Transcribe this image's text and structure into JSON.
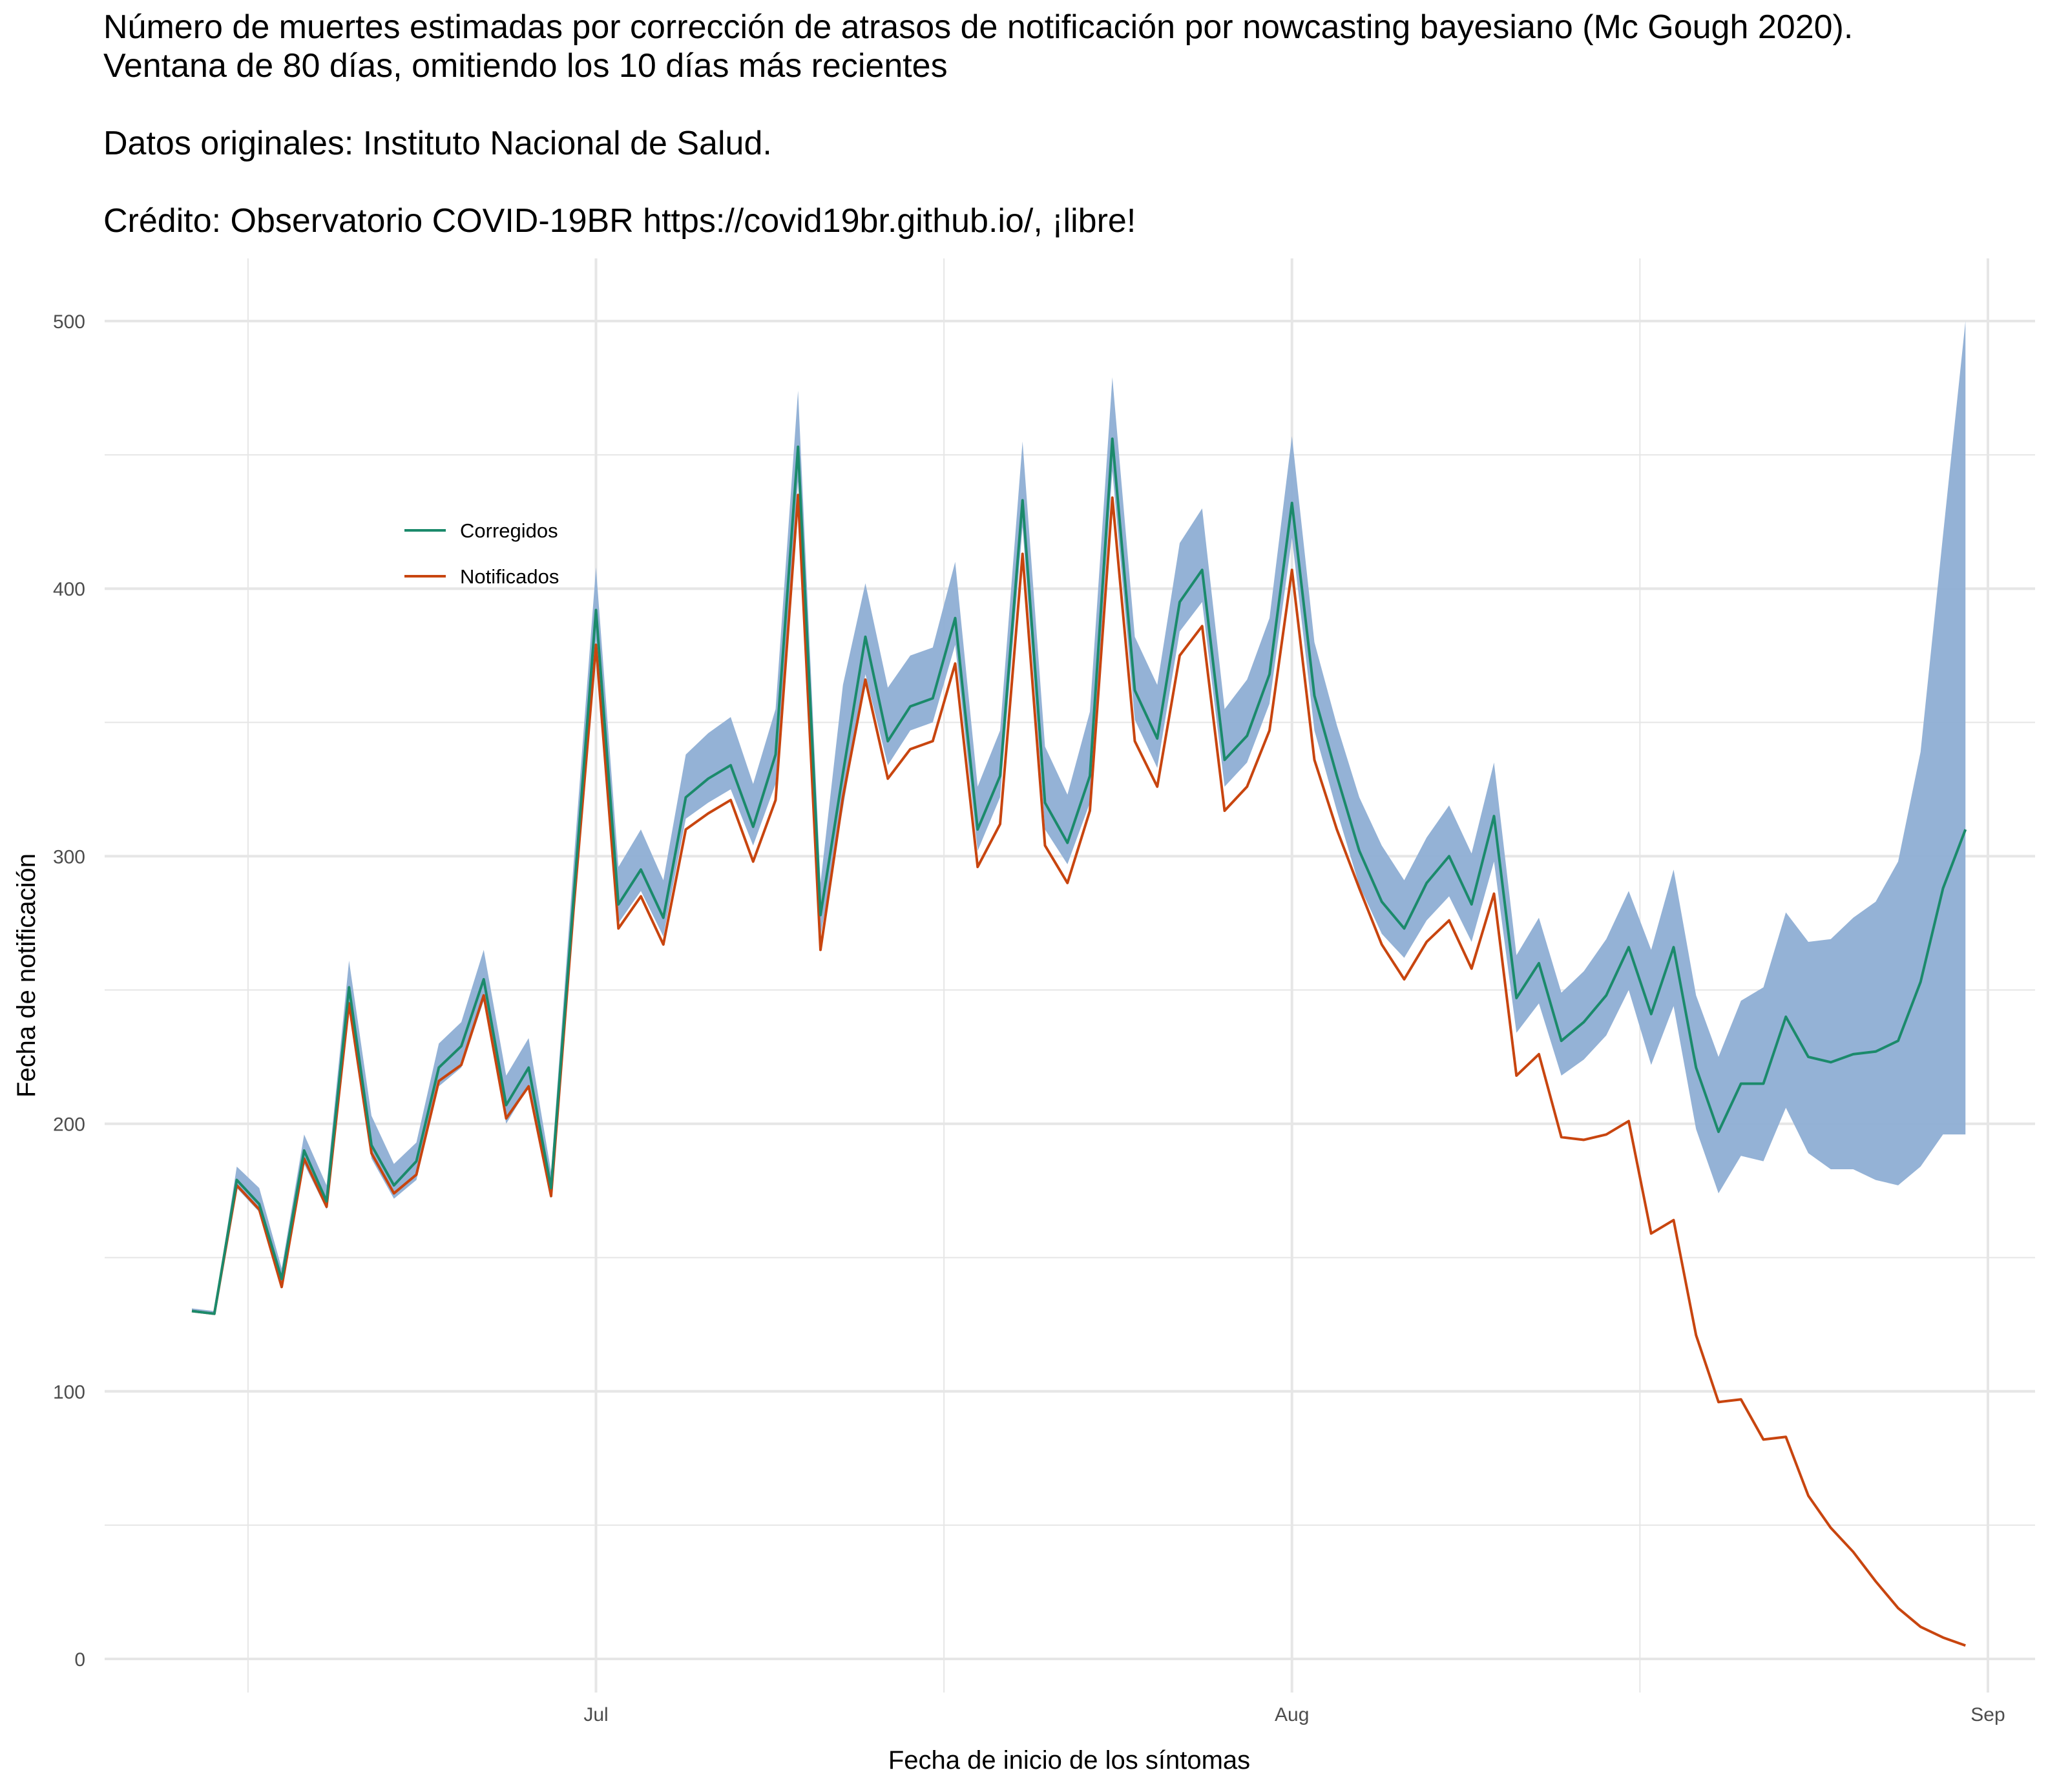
{
  "title": {
    "line1": "Número de muertes estimadas por corrección de atrasos de notificación por nowcasting bayesiano (Mc Gough 2020).",
    "line2": "Ventana de 80 días, omitiendo los 10 días más recientes",
    "line3": "Datos originales: Instituto Nacional de Salud.",
    "line4": "Crédito: Observatorio COVID-19BR https://covid19br.github.io/, ¡libre!"
  },
  "colors": {
    "corrected": "#1b8a6b",
    "reported": "#c8450f",
    "band": "#8eaed4",
    "grid": "#e6e6e6"
  },
  "chart_data": {
    "type": "line",
    "xlabel": "Fecha de inicio de los síntomas",
    "ylabel": "Fecha de notificación",
    "ylim": [
      0,
      500
    ],
    "y_ticks": [
      "0",
      "100",
      "200",
      "300",
      "400",
      "500"
    ],
    "x_ticks": [
      "Jul",
      "Aug",
      "Sep"
    ],
    "x_start": "2020-06-13",
    "legend": {
      "position": "top-left",
      "entries": [
        "Corregidos",
        "Notificados"
      ]
    },
    "grid": true,
    "series": [
      {
        "name": "Corregidos",
        "values": [
          130,
          129,
          179,
          170,
          142,
          190,
          171,
          251,
          192,
          177,
          186,
          221,
          229,
          254,
          207,
          221,
          176,
          284,
          392,
          282,
          295,
          277,
          322,
          329,
          334,
          311,
          338,
          453,
          278,
          331,
          382,
          343,
          356,
          359,
          389,
          310,
          330,
          433,
          320,
          305,
          330,
          456,
          362,
          344,
          395,
          407,
          336,
          345,
          368,
          432,
          360,
          330,
          302,
          283,
          273,
          290,
          300,
          282,
          315,
          247,
          260,
          231,
          238,
          248,
          266,
          241,
          266,
          221,
          197,
          215,
          215,
          240,
          225,
          223,
          226,
          227,
          231,
          253,
          288,
          310
        ]
      },
      {
        "name": "Notificados",
        "values": [
          130,
          129,
          177,
          168,
          139,
          187,
          169,
          245,
          189,
          174,
          181,
          216,
          222,
          248,
          202,
          214,
          173,
          280,
          379,
          273,
          285,
          267,
          310,
          316,
          321,
          298,
          321,
          435,
          265,
          322,
          366,
          329,
          340,
          343,
          372,
          296,
          312,
          413,
          304,
          290,
          317,
          434,
          343,
          326,
          375,
          386,
          317,
          326,
          347,
          407,
          336,
          310,
          288,
          267,
          254,
          268,
          276,
          258,
          286,
          218,
          226,
          195,
          194,
          196,
          201,
          159,
          164,
          121,
          96,
          97,
          82,
          83,
          61,
          49,
          40,
          29,
          19,
          12,
          8,
          5
        ]
      },
      {
        "name": "band_upper",
        "values": [
          131,
          130,
          184,
          176,
          146,
          196,
          177,
          261,
          203,
          185,
          193,
          230,
          238,
          265,
          218,
          232,
          182,
          297,
          408,
          296,
          310,
          291,
          338,
          346,
          352,
          327,
          355,
          474,
          290,
          364,
          402,
          363,
          375,
          378,
          410,
          326,
          347,
          455,
          341,
          323,
          354,
          479,
          382,
          364,
          417,
          430,
          355,
          366,
          389,
          457,
          380,
          349,
          322,
          304,
          291,
          307,
          319,
          301,
          335,
          263,
          277,
          249,
          257,
          269,
          287,
          265,
          295,
          248,
          225,
          246,
          251,
          279,
          268,
          269,
          277,
          283,
          298,
          339,
          420,
          500
        ]
      },
      {
        "name": "band_lower",
        "values": [
          130,
          129,
          176,
          167,
          140,
          185,
          168,
          244,
          187,
          172,
          179,
          214,
          221,
          246,
          200,
          214,
          172,
          276,
          381,
          275,
          287,
          270,
          314,
          320,
          325,
          304,
          327,
          440,
          270,
          318,
          368,
          334,
          347,
          350,
          379,
          302,
          322,
          423,
          310,
          297,
          320,
          444,
          351,
          333,
          384,
          395,
          326,
          335,
          357,
          419,
          347,
          317,
          289,
          271,
          262,
          276,
          285,
          268,
          298,
          234,
          245,
          218,
          224,
          233,
          250,
          222,
          244,
          198,
          174,
          188,
          186,
          206,
          189,
          183,
          183,
          179,
          177,
          184,
          196,
          196
        ]
      }
    ]
  }
}
